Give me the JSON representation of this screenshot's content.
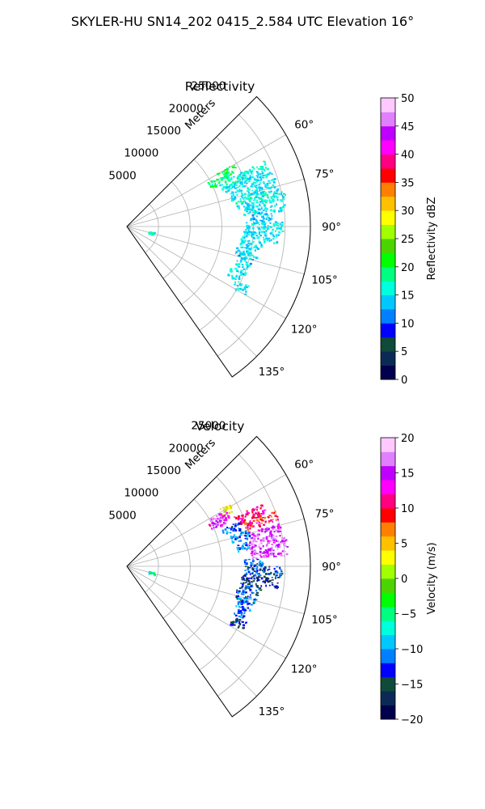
{
  "figure_title": "SKYLER-HU  SN14_202  0415_2.584 UTC Elevation 16°",
  "chart_data": [
    {
      "type": "polar-sector",
      "title": "Reflectivity",
      "radial_axis_label": "Meters",
      "radial_ticks": [
        "5000",
        "10000",
        "15000",
        "20000",
        "25000"
      ],
      "radial_tick_values": [
        5000,
        10000,
        15000,
        20000,
        25000
      ],
      "r_max": 29000,
      "azimuth_range_deg": [
        45,
        145
      ],
      "azimuth_tick_values": [
        60,
        75,
        90,
        105,
        120,
        135
      ],
      "azimuth_ticks": [
        "60°",
        "75°",
        "90°",
        "105°",
        "120°",
        "135°"
      ],
      "grid": true,
      "colorbar": {
        "label": "Reflectivity dBZ",
        "range": [
          0,
          50
        ],
        "tick_values": [
          0,
          5,
          10,
          15,
          20,
          25,
          30,
          35,
          40,
          45,
          50
        ],
        "ticks": [
          "0",
          "5",
          "10",
          "15",
          "20",
          "25",
          "30",
          "35",
          "40",
          "45",
          "50"
        ],
        "colormap": [
          "#00004c",
          "#0a2a55",
          "#0f4a3a",
          "#0000ff",
          "#0080ff",
          "#00c8ff",
          "#00ffdc",
          "#00ff80",
          "#00ff00",
          "#4cd400",
          "#a0ff00",
          "#ffff00",
          "#ffc000",
          "#ff8000",
          "#ff0000",
          "#ff0080",
          "#ff00ff",
          "#c000ff",
          "#e080ff",
          "#ffc8ff"
        ]
      },
      "echoes": [
        {
          "az": 61,
          "r0": 16500,
          "r1": 19500,
          "value": 20
        },
        {
          "az": 63,
          "r0": 14500,
          "r1": 18000,
          "value": 19
        },
        {
          "az": 66,
          "r0": 16000,
          "r1": 24000,
          "value": 16
        },
        {
          "az": 70,
          "r0": 16500,
          "r1": 24500,
          "value": 15
        },
        {
          "az": 74,
          "r0": 17000,
          "r1": 24500,
          "value": 15
        },
        {
          "az": 78,
          "r0": 17500,
          "r1": 25500,
          "value": 16
        },
        {
          "az": 82,
          "r0": 18500,
          "r1": 25000,
          "value": 15
        },
        {
          "az": 86,
          "r0": 19500,
          "r1": 23000,
          "value": 14
        },
        {
          "az": 90,
          "r0": 18500,
          "r1": 24500,
          "value": 15
        },
        {
          "az": 94,
          "r0": 18000,
          "r1": 24000,
          "value": 15
        },
        {
          "az": 98,
          "r0": 18000,
          "r1": 21500,
          "value": 15
        },
        {
          "az": 102,
          "r0": 17500,
          "r1": 21000,
          "value": 15
        },
        {
          "az": 106,
          "r0": 18000,
          "r1": 20500,
          "value": 14
        },
        {
          "az": 110,
          "r0": 18000,
          "r1": 20000,
          "value": 14
        },
        {
          "az": 114,
          "r0": 17500,
          "r1": 19500,
          "value": 15
        },
        {
          "az": 118,
          "r0": 19000,
          "r1": 21500,
          "value": 15
        },
        {
          "az": 104,
          "r0": 3500,
          "r1": 4500,
          "value": 17
        }
      ]
    },
    {
      "type": "polar-sector",
      "title": "Velocity",
      "radial_axis_label": "Meters",
      "radial_ticks": [
        "5000",
        "10000",
        "15000",
        "20000",
        "25000"
      ],
      "radial_tick_values": [
        5000,
        10000,
        15000,
        20000,
        25000
      ],
      "r_max": 29000,
      "azimuth_range_deg": [
        45,
        145
      ],
      "azimuth_tick_values": [
        60,
        75,
        90,
        105,
        120,
        135
      ],
      "azimuth_ticks": [
        "60°",
        "75°",
        "90°",
        "105°",
        "120°",
        "135°"
      ],
      "grid": true,
      "colorbar": {
        "label": "Velocity (m/s)",
        "range": [
          -20,
          20
        ],
        "tick_values": [
          -20,
          -15,
          -10,
          -5,
          0,
          5,
          10,
          15,
          20
        ],
        "ticks": [
          "−20",
          "−15",
          "−10",
          "−5",
          "0",
          "5",
          "10",
          "15",
          "20"
        ],
        "colormap": [
          "#00004c",
          "#0a2a55",
          "#0f4a3a",
          "#0000ff",
          "#0080ff",
          "#00c8ff",
          "#00ffdc",
          "#00ff80",
          "#00ff00",
          "#4cd400",
          "#a0ff00",
          "#ffff00",
          "#ffc000",
          "#ff8000",
          "#ff0000",
          "#ff0080",
          "#ff00ff",
          "#c000ff",
          "#e080ff",
          "#ffc8ff"
        ]
      },
      "echoes": [
        {
          "az": 60,
          "r0": 17000,
          "r1": 19000,
          "value": 3
        },
        {
          "az": 62,
          "r0": 15000,
          "r1": 18000,
          "value": 15
        },
        {
          "az": 64,
          "r0": 14500,
          "r1": 17500,
          "value": 14
        },
        {
          "az": 67,
          "r0": 18500,
          "r1": 24000,
          "value": 11
        },
        {
          "az": 71,
          "r0": 19500,
          "r1": 25000,
          "value": 10
        },
        {
          "az": 70,
          "r0": 16000,
          "r1": 19000,
          "value": -12
        },
        {
          "az": 75,
          "r0": 17000,
          "r1": 20000,
          "value": -11
        },
        {
          "az": 76,
          "r0": 20000,
          "r1": 25000,
          "value": 15
        },
        {
          "az": 80,
          "r0": 19000,
          "r1": 25500,
          "value": 16
        },
        {
          "az": 84,
          "r0": 19500,
          "r1": 25500,
          "value": 15
        },
        {
          "az": 80,
          "r0": 17500,
          "r1": 19500,
          "value": -11
        },
        {
          "az": 88,
          "r0": 18500,
          "r1": 21500,
          "value": -12
        },
        {
          "az": 92,
          "r0": 18500,
          "r1": 24500,
          "value": -13
        },
        {
          "az": 96,
          "r0": 18000,
          "r1": 24000,
          "value": -15
        },
        {
          "az": 100,
          "r0": 18000,
          "r1": 21500,
          "value": -13
        },
        {
          "az": 104,
          "r0": 17500,
          "r1": 21000,
          "value": -12
        },
        {
          "az": 108,
          "r0": 18000,
          "r1": 20500,
          "value": -11
        },
        {
          "az": 112,
          "r0": 18000,
          "r1": 20000,
          "value": -12
        },
        {
          "az": 117,
          "r0": 18500,
          "r1": 21000,
          "value": -14
        },
        {
          "az": 104,
          "r0": 3500,
          "r1": 4500,
          "value": -6
        }
      ]
    }
  ]
}
